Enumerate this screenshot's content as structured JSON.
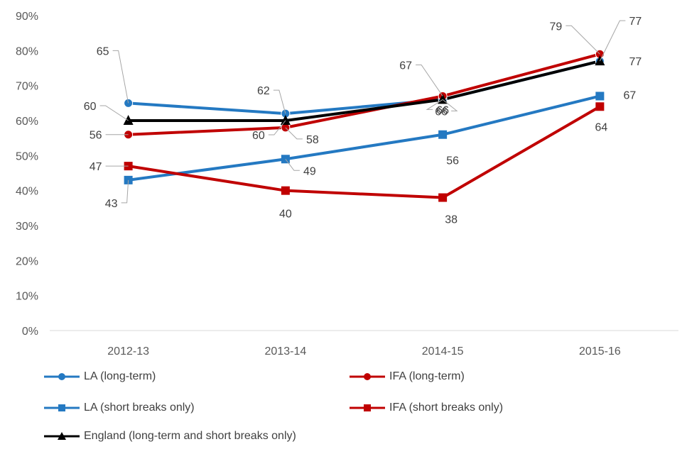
{
  "chart_data": {
    "type": "line",
    "title": "",
    "xlabel": "",
    "ylabel": "",
    "categories": [
      "2012-13",
      "2013-14",
      "2014-15",
      "2015-16"
    ],
    "ylim": [
      0,
      90
    ],
    "yticks": [
      "0%",
      "10%",
      "20%",
      "30%",
      "40%",
      "50%",
      "60%",
      "70%",
      "80%",
      "90%"
    ],
    "legend_position": "bottom",
    "series": [
      {
        "name": "LA (long-term)",
        "values": [
          65,
          62,
          66,
          77
        ],
        "labels": [
          "65",
          "62",
          "66",
          "77"
        ],
        "color": "#2479C2",
        "marker": "circle"
      },
      {
        "name": "IFA (long-term)",
        "values": [
          56,
          58,
          67,
          79
        ],
        "labels": [
          "56",
          "58",
          "67",
          "79"
        ],
        "color": "#C00000",
        "marker": "circle"
      },
      {
        "name": "LA (short breaks only)",
        "values": [
          43,
          49,
          56,
          67
        ],
        "labels": [
          "43",
          "49",
          "56",
          "67"
        ],
        "color": "#2479C2",
        "marker": "square"
      },
      {
        "name": "IFA (short breaks only)",
        "values": [
          47,
          40,
          38,
          64
        ],
        "labels": [
          "47",
          "40",
          "38",
          "64"
        ],
        "color": "#C00000",
        "marker": "square"
      },
      {
        "name": "England (long-term and short breaks only)",
        "values": [
          60,
          60,
          66,
          77
        ],
        "labels": [
          "60",
          "60",
          "66",
          "77"
        ],
        "color": "#000000",
        "marker": "triangle"
      }
    ]
  }
}
